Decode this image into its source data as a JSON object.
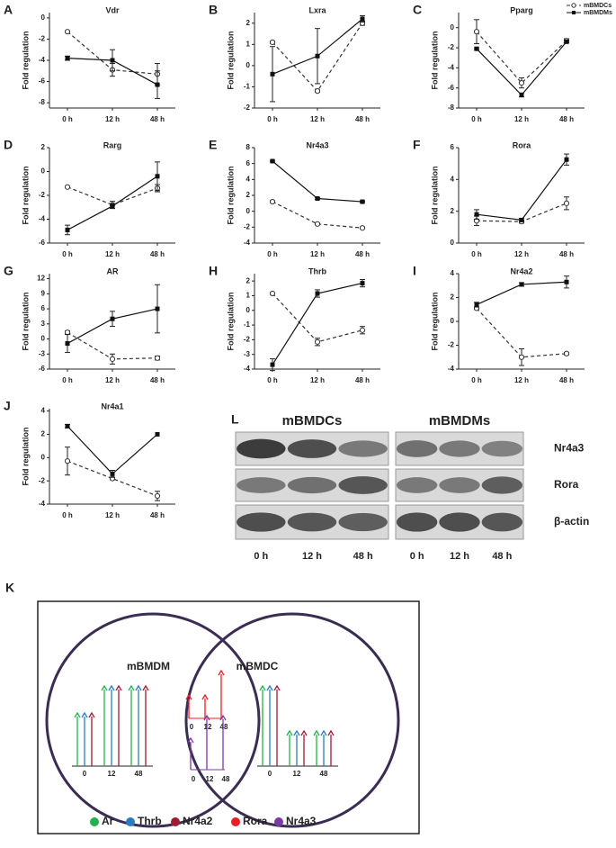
{
  "legend": [
    {
      "name": "mBMDCs",
      "color": "#333333",
      "dash": "4 3",
      "marker": "open-circle"
    },
    {
      "name": "mBMDMs",
      "color": "#111111",
      "dash": "none",
      "marker": "square"
    }
  ],
  "chart_data": [
    {
      "type": "line",
      "panel": "A",
      "title": "Vdr",
      "y_label": "Fold regulation",
      "categories": [
        "0 h",
        "12 h",
        "48 h"
      ],
      "series": [
        {
          "values": [
            -1.3,
            -4.9,
            -5.3
          ],
          "errors": [
            0,
            0.6,
            1.0
          ]
        },
        {
          "values": [
            -3.8,
            -4.0,
            -6.3
          ],
          "errors": [
            0.2,
            1.0,
            1.3
          ]
        }
      ],
      "ylim": [
        -8.5,
        0.5
      ],
      "yticks": [
        0,
        -2,
        -4,
        -6,
        -8
      ]
    },
    {
      "type": "line",
      "panel": "B",
      "title": "Lxra",
      "y_label": "Fold regulation",
      "categories": [
        "0 h",
        "12 h",
        "48 h"
      ],
      "series": [
        {
          "values": [
            1.1,
            -1.2,
            2.0
          ],
          "errors": [
            0.05,
            0.05,
            0.1
          ]
        },
        {
          "values": [
            -0.4,
            0.45,
            2.2
          ],
          "errors": [
            1.3,
            1.3,
            0.15
          ]
        }
      ],
      "ylim": [
        -2,
        2.5
      ],
      "yticks": [
        2,
        1,
        0,
        -1,
        -2
      ]
    },
    {
      "type": "line",
      "panel": "C",
      "title": "Pparg",
      "y_label": "Fold regulation",
      "categories": [
        "0 h",
        "12 h",
        "48 h"
      ],
      "series": [
        {
          "values": [
            -0.4,
            -5.5,
            -1.3
          ],
          "errors": [
            1.2,
            0.5,
            0.2
          ]
        },
        {
          "values": [
            -2.1,
            -6.7,
            -1.4
          ],
          "errors": [
            0.1,
            0.2,
            0.1
          ]
        }
      ],
      "ylim": [
        -8,
        1.5
      ],
      "yticks": [
        0,
        -2,
        -4,
        -6,
        -8
      ]
    },
    {
      "type": "line",
      "panel": "D",
      "title": "Rarg",
      "y_label": "Fold regulation",
      "categories": [
        "0 h",
        "12 h",
        "48 h"
      ],
      "series": [
        {
          "values": [
            -1.3,
            -2.8,
            -1.4
          ],
          "errors": [
            0,
            0.3,
            0.3
          ]
        },
        {
          "values": [
            -4.9,
            -2.9,
            -0.4
          ],
          "errors": [
            0.4,
            0.2,
            1.2
          ]
        }
      ],
      "ylim": [
        -6,
        2
      ],
      "yticks": [
        2,
        0,
        -2,
        -4,
        -6
      ]
    },
    {
      "type": "line",
      "panel": "E",
      "title": "Nr4a3",
      "y_label": "Fold regulation",
      "categories": [
        "0 h",
        "12 h",
        "48 h"
      ],
      "series": [
        {
          "values": [
            1.2,
            -1.6,
            -2.1
          ],
          "errors": [
            0.1,
            0.1,
            0.1
          ]
        },
        {
          "values": [
            6.3,
            1.6,
            1.2
          ],
          "errors": [
            0.1,
            0.1,
            0.1
          ]
        }
      ],
      "ylim": [
        -4,
        8
      ],
      "yticks": [
        8,
        6,
        4,
        2,
        0,
        -2,
        -4
      ]
    },
    {
      "type": "line",
      "panel": "F",
      "title": "Rora",
      "y_label": "Fold regulation",
      "categories": [
        "0 h",
        "12 h",
        "48 h"
      ],
      "series": [
        {
          "values": [
            1.4,
            1.35,
            2.5
          ],
          "errors": [
            0.3,
            0.1,
            0.4
          ]
        },
        {
          "values": [
            1.8,
            1.45,
            5.25
          ],
          "errors": [
            0.3,
            0.1,
            0.35
          ]
        }
      ],
      "ylim": [
        0,
        6
      ],
      "yticks": [
        6,
        4,
        2,
        0
      ]
    },
    {
      "type": "line",
      "panel": "G",
      "title": "AR",
      "y_label": "Fold regulation",
      "categories": [
        "0 h",
        "12 h",
        "48 h"
      ],
      "series": [
        {
          "values": [
            1.3,
            -4,
            -3.8
          ],
          "errors": [
            0.3,
            1,
            0.4
          ]
        },
        {
          "values": [
            -0.9,
            4,
            6
          ],
          "errors": [
            1.8,
            1.5,
            4.8
          ]
        }
      ],
      "ylim": [
        -6,
        13
      ],
      "yticks": [
        12,
        9,
        6,
        3,
        0,
        -3,
        -6
      ]
    },
    {
      "type": "line",
      "panel": "H",
      "title": "Thrb",
      "y_label": "Fold regulation",
      "categories": [
        "0 h",
        "12 h",
        "48 h"
      ],
      "series": [
        {
          "values": [
            1.15,
            -2.15,
            -1.35
          ],
          "errors": [
            0.05,
            0.25,
            0.25
          ]
        },
        {
          "values": [
            -3.7,
            1.15,
            1.85
          ],
          "errors": [
            0.4,
            0.25,
            0.25
          ]
        }
      ],
      "ylim": [
        -4,
        2.5
      ],
      "yticks": [
        2,
        1,
        0,
        -1,
        -2,
        -3,
        -4
      ]
    },
    {
      "type": "line",
      "panel": "I",
      "title": "Nr4a2",
      "y_label": "Fold regulation",
      "categories": [
        "0 h",
        "12 h",
        "48 h"
      ],
      "series": [
        {
          "values": [
            1.1,
            -3.0,
            -2.7
          ],
          "errors": [
            0.1,
            0.7,
            0.1
          ]
        },
        {
          "values": [
            1.4,
            3.1,
            3.3
          ],
          "errors": [
            0.2,
            0.15,
            0.5
          ]
        }
      ],
      "ylim": [
        -4,
        4
      ],
      "yticks": [
        4,
        2,
        0,
        -2,
        -4
      ]
    },
    {
      "type": "line",
      "panel": "J",
      "title": "Nr4a1",
      "y_label": "Fold regulation",
      "categories": [
        "0 h",
        "12 h",
        "48 h"
      ],
      "series": [
        {
          "values": [
            -0.3,
            -1.8,
            -3.3
          ],
          "errors": [
            1.2,
            0.1,
            0.4
          ]
        },
        {
          "values": [
            2.7,
            -1.4,
            2.0
          ],
          "errors": [
            0.15,
            0.3,
            0
          ]
        }
      ],
      "ylim": [
        -4,
        4.2
      ],
      "yticks": [
        4,
        2,
        0,
        -2,
        -4
      ]
    }
  ],
  "blot": {
    "panel": "L",
    "groups": [
      "mBMDCs",
      "mBMDMs"
    ],
    "proteins": [
      "Nr4a3",
      "Rora",
      "β-actin"
    ],
    "timepoints": [
      "0 h",
      "12 h",
      "48 h"
    ]
  },
  "venn": {
    "panel": "K",
    "sets": [
      "mBMDM",
      "mBMDC"
    ],
    "arrow_labels": [
      "0",
      "12",
      "48"
    ],
    "genes": [
      {
        "name": "Ar",
        "color": "#22b14c"
      },
      {
        "name": "Thrb",
        "color": "#2b7bc0"
      },
      {
        "name": "Nr4a2",
        "color": "#9e1b32"
      },
      {
        "name": "Rora",
        "color": "#ed1c24"
      },
      {
        "name": "Nr4a3",
        "color": "#7b3aa3"
      }
    ]
  }
}
